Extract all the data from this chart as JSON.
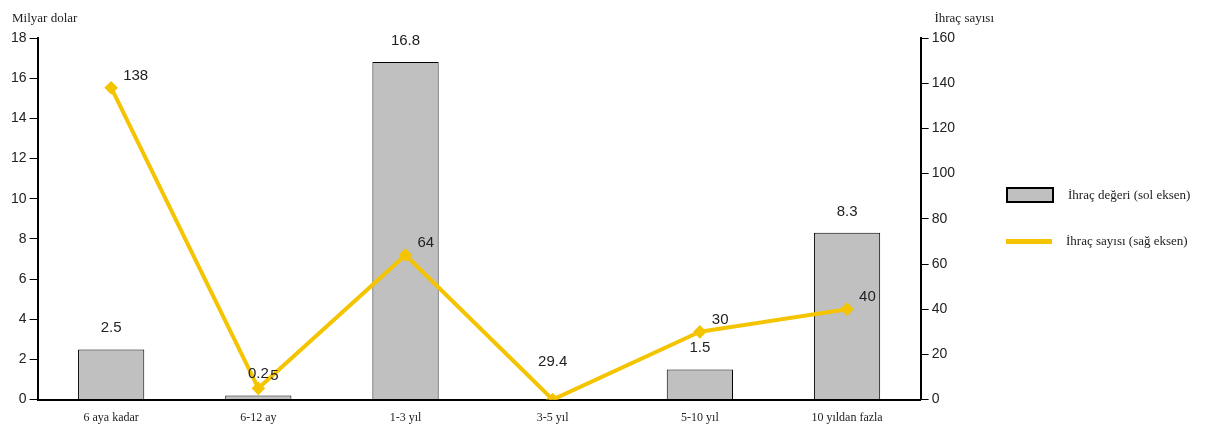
{
  "chart_data": {
    "type": "bar",
    "categories": [
      "6 aya kadar",
      "6-12 ay",
      "1-3 yıl",
      "3-5 yıl",
      "5-10 yıl",
      "10 yıldan fazla"
    ],
    "ylabel": "Milyar dolar",
    "y2label": "İhraç sayısı",
    "series": [
      {
        "name": "İhraç değeri (sol eksen)",
        "color": "#c0c0c0",
        "values": [
          2.5,
          0.2,
          16.8,
          null,
          1.5,
          8.3
        ],
        "value_labels": [
          "2.5",
          "0.2",
          "16.8",
          null,
          "1.5",
          "8.3"
        ]
      },
      {
        "name": "İhraç sayısı (sağ eksen)",
        "type": "line",
        "axis": "y2",
        "color": "#f5c400",
        "values": [
          138,
          5,
          64,
          0,
          30,
          40
        ],
        "value_labels": [
          "138",
          "5",
          "64",
          null,
          "30",
          "40"
        ]
      }
    ],
    "annotations": [
      "29.4"
    ],
    "ylim": [
      0,
      18
    ],
    "yticks": [
      0,
      2,
      4,
      6,
      8,
      10,
      12,
      14,
      16,
      18
    ],
    "y2lim": [
      0,
      160
    ],
    "y2ticks": [
      0,
      20,
      40,
      60,
      80,
      100,
      120,
      140,
      160
    ],
    "grid": false,
    "legend": "right",
    "marker": "diamond",
    "line_style": "solid"
  }
}
